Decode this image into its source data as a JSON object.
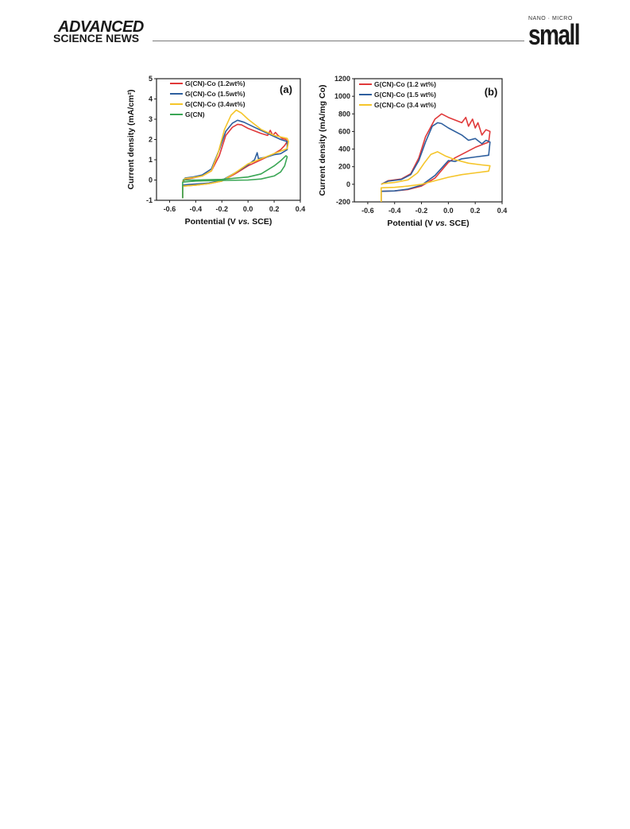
{
  "header": {
    "brand_top": "ADVANCED",
    "brand_bottom": "SCIENCE NEWS",
    "journal_kicker": "NANO · MICRO",
    "journal_word": "small"
  },
  "chart_data": [
    {
      "type": "line",
      "panel_label": "(a)",
      "xlabel": "Pontential (V vs. SCE)",
      "ylabel": "Current density (mA/cm²)",
      "xlim": [
        -0.7,
        0.4
      ],
      "ylim": [
        -1,
        5
      ],
      "xticks": [
        -0.6,
        -0.4,
        -0.2,
        0.0,
        0.2,
        0.4
      ],
      "yticks": [
        -1,
        0,
        1,
        2,
        3,
        4,
        5
      ],
      "legend_position": "top-left",
      "series": [
        {
          "name": "G(CN)-Co (1.2wt%)",
          "color": "#e0393a",
          "points": [
            [
              -0.5,
              -0.9
            ],
            [
              -0.5,
              -0.3
            ],
            [
              -0.45,
              -0.28
            ],
            [
              -0.4,
              -0.25
            ],
            [
              -0.3,
              -0.18
            ],
            [
              -0.2,
              -0.05
            ],
            [
              -0.1,
              0.3
            ],
            [
              0.0,
              0.7
            ],
            [
              0.1,
              1.0
            ],
            [
              0.2,
              1.3
            ],
            [
              0.25,
              1.5
            ],
            [
              0.28,
              1.7
            ],
            [
              0.3,
              1.9
            ],
            [
              0.29,
              2.0
            ],
            [
              0.26,
              2.05
            ],
            [
              0.23,
              2.2
            ],
            [
              0.21,
              2.35
            ],
            [
              0.19,
              2.2
            ],
            [
              0.17,
              2.45
            ],
            [
              0.15,
              2.2
            ],
            [
              0.1,
              2.3
            ],
            [
              0.0,
              2.55
            ],
            [
              -0.05,
              2.72
            ],
            [
              -0.08,
              2.75
            ],
            [
              -0.12,
              2.6
            ],
            [
              -0.17,
              2.2
            ],
            [
              -0.22,
              1.2
            ],
            [
              -0.28,
              0.45
            ],
            [
              -0.35,
              0.2
            ],
            [
              -0.42,
              0.1
            ],
            [
              -0.48,
              0.05
            ],
            [
              -0.5,
              -0.1
            ]
          ]
        },
        {
          "name": "G(CN)-Co (1.5wt%)",
          "color": "#2e5f9e",
          "points": [
            [
              -0.5,
              -0.9
            ],
            [
              -0.5,
              -0.25
            ],
            [
              -0.45,
              -0.22
            ],
            [
              -0.4,
              -0.2
            ],
            [
              -0.3,
              -0.15
            ],
            [
              -0.2,
              -0.02
            ],
            [
              -0.1,
              0.35
            ],
            [
              0.0,
              0.75
            ],
            [
              0.05,
              1.0
            ],
            [
              0.07,
              1.35
            ],
            [
              0.08,
              1.05
            ],
            [
              0.15,
              1.15
            ],
            [
              0.2,
              1.25
            ],
            [
              0.25,
              1.3
            ],
            [
              0.3,
              1.5
            ],
            [
              0.3,
              1.9
            ],
            [
              0.25,
              2.0
            ],
            [
              0.15,
              2.3
            ],
            [
              0.05,
              2.6
            ],
            [
              -0.03,
              2.85
            ],
            [
              -0.08,
              2.95
            ],
            [
              -0.12,
              2.8
            ],
            [
              -0.17,
              2.4
            ],
            [
              -0.22,
              1.5
            ],
            [
              -0.28,
              0.55
            ],
            [
              -0.35,
              0.25
            ],
            [
              -0.42,
              0.15
            ],
            [
              -0.48,
              0.1
            ],
            [
              -0.5,
              -0.05
            ]
          ]
        },
        {
          "name": "G(CN)-Co (3.4wt%)",
          "color": "#f5c52a",
          "points": [
            [
              -0.5,
              -0.9
            ],
            [
              -0.5,
              -0.3
            ],
            [
              -0.4,
              -0.25
            ],
            [
              -0.3,
              -0.18
            ],
            [
              -0.2,
              -0.05
            ],
            [
              -0.1,
              0.35
            ],
            [
              0.0,
              0.8
            ],
            [
              0.1,
              1.05
            ],
            [
              0.2,
              1.3
            ],
            [
              0.3,
              1.55
            ],
            [
              0.31,
              1.9
            ],
            [
              0.3,
              2.05
            ],
            [
              0.2,
              2.2
            ],
            [
              0.1,
              2.5
            ],
            [
              0.0,
              3.0
            ],
            [
              -0.05,
              3.3
            ],
            [
              -0.09,
              3.45
            ],
            [
              -0.13,
              3.2
            ],
            [
              -0.18,
              2.5
            ],
            [
              -0.23,
              1.3
            ],
            [
              -0.28,
              0.45
            ],
            [
              -0.35,
              0.2
            ],
            [
              -0.42,
              0.12
            ],
            [
              -0.48,
              0.08
            ],
            [
              -0.5,
              -0.05
            ]
          ]
        },
        {
          "name": "G(CN)",
          "color": "#3aa655",
          "points": [
            [
              -0.5,
              -0.9
            ],
            [
              -0.5,
              -0.1
            ],
            [
              -0.4,
              -0.05
            ],
            [
              -0.2,
              -0.02
            ],
            [
              0.0,
              0.0
            ],
            [
              0.1,
              0.05
            ],
            [
              0.2,
              0.2
            ],
            [
              0.25,
              0.4
            ],
            [
              0.28,
              0.7
            ],
            [
              0.3,
              1.15
            ],
            [
              0.29,
              1.2
            ],
            [
              0.25,
              0.95
            ],
            [
              0.2,
              0.7
            ],
            [
              0.1,
              0.3
            ],
            [
              0.0,
              0.15
            ],
            [
              -0.2,
              0.03
            ],
            [
              -0.4,
              0.0
            ],
            [
              -0.5,
              0.0
            ]
          ]
        }
      ]
    },
    {
      "type": "line",
      "panel_label": "(b)",
      "xlabel": "Potential (V vs. SCE)",
      "ylabel": "Current density (mA/mg Co)",
      "xlim": [
        -0.7,
        0.4
      ],
      "ylim": [
        -200,
        1200
      ],
      "xticks": [
        -0.6,
        -0.4,
        -0.2,
        0.0,
        0.2,
        0.4
      ],
      "yticks": [
        -200,
        0,
        200,
        400,
        600,
        800,
        1000,
        1200
      ],
      "legend_position": "top-left",
      "series": [
        {
          "name": "G(CN)-Co (1.2 wt%)",
          "color": "#e0393a",
          "points": [
            [
              -0.5,
              -200
            ],
            [
              -0.5,
              -80
            ],
            [
              -0.4,
              -75
            ],
            [
              -0.3,
              -60
            ],
            [
              -0.2,
              -20
            ],
            [
              -0.1,
              70
            ],
            [
              0.0,
              250
            ],
            [
              0.05,
              300
            ],
            [
              0.1,
              340
            ],
            [
              0.2,
              420
            ],
            [
              0.3,
              480
            ],
            [
              0.31,
              600
            ],
            [
              0.28,
              620
            ],
            [
              0.25,
              560
            ],
            [
              0.22,
              700
            ],
            [
              0.2,
              640
            ],
            [
              0.18,
              740
            ],
            [
              0.15,
              660
            ],
            [
              0.13,
              760
            ],
            [
              0.1,
              700
            ],
            [
              0.0,
              760
            ],
            [
              -0.05,
              800
            ],
            [
              -0.1,
              740
            ],
            [
              -0.17,
              540
            ],
            [
              -0.22,
              300
            ],
            [
              -0.28,
              120
            ],
            [
              -0.35,
              60
            ],
            [
              -0.45,
              40
            ],
            [
              -0.5,
              0
            ]
          ]
        },
        {
          "name": "G(CN)-Co (1.5 wt%)",
          "color": "#2e5f9e",
          "points": [
            [
              -0.5,
              -200
            ],
            [
              -0.5,
              -80
            ],
            [
              -0.4,
              -75
            ],
            [
              -0.3,
              -55
            ],
            [
              -0.2,
              -10
            ],
            [
              -0.1,
              100
            ],
            [
              0.0,
              270
            ],
            [
              0.05,
              260
            ],
            [
              0.1,
              290
            ],
            [
              0.2,
              310
            ],
            [
              0.3,
              330
            ],
            [
              0.31,
              480
            ],
            [
              0.28,
              500
            ],
            [
              0.25,
              460
            ],
            [
              0.2,
              520
            ],
            [
              0.15,
              500
            ],
            [
              0.1,
              560
            ],
            [
              0.0,
              640
            ],
            [
              -0.05,
              690
            ],
            [
              -0.08,
              700
            ],
            [
              -0.12,
              660
            ],
            [
              -0.17,
              480
            ],
            [
              -0.22,
              270
            ],
            [
              -0.28,
              110
            ],
            [
              -0.35,
              55
            ],
            [
              -0.45,
              35
            ],
            [
              -0.5,
              0
            ]
          ]
        },
        {
          "name": "G(CN)-Co (3.4 wt%)",
          "color": "#f5c52a",
          "points": [
            [
              -0.5,
              -200
            ],
            [
              -0.5,
              -40
            ],
            [
              -0.4,
              -35
            ],
            [
              -0.3,
              -20
            ],
            [
              -0.2,
              0
            ],
            [
              -0.1,
              40
            ],
            [
              0.0,
              80
            ],
            [
              0.1,
              110
            ],
            [
              0.2,
              130
            ],
            [
              0.3,
              150
            ],
            [
              0.31,
              210
            ],
            [
              0.25,
              220
            ],
            [
              0.15,
              240
            ],
            [
              0.05,
              280
            ],
            [
              -0.02,
              320
            ],
            [
              -0.08,
              370
            ],
            [
              -0.13,
              340
            ],
            [
              -0.18,
              240
            ],
            [
              -0.23,
              130
            ],
            [
              -0.3,
              50
            ],
            [
              -0.4,
              20
            ],
            [
              -0.48,
              10
            ],
            [
              -0.5,
              0
            ]
          ]
        }
      ]
    }
  ]
}
